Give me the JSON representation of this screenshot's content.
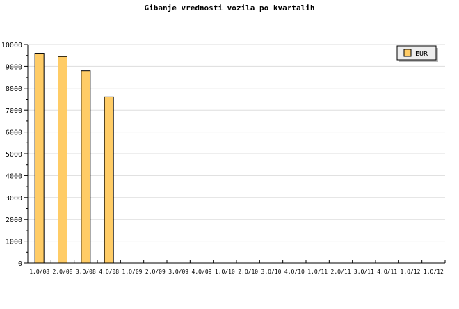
{
  "chart_data": {
    "type": "bar",
    "title": "Gibanje vrednosti vozila po kvartalih",
    "categories": [
      "1.Q/08",
      "2.Q/08",
      "3.Q/08",
      "4.Q/08",
      "1.Q/09",
      "2.Q/09",
      "3.Q/09",
      "4.Q/09",
      "1.Q/10",
      "2.Q/10",
      "3.Q/10",
      "4.Q/10",
      "1.Q/11",
      "2.Q/11",
      "3.Q/11",
      "4.Q/11",
      "1.Q/12",
      "1.Q/12"
    ],
    "series": [
      {
        "name": "EUR",
        "values": [
          9600,
          9450,
          8800,
          7600,
          null,
          null,
          null,
          null,
          null,
          null,
          null,
          null,
          null,
          null,
          null,
          null,
          null,
          null
        ],
        "color": "#ffcc66"
      }
    ],
    "ylim": [
      0,
      10000
    ],
    "yticks": [
      0,
      1000,
      2000,
      3000,
      4000,
      5000,
      6000,
      7000,
      8000,
      9000,
      10000
    ],
    "grid": true,
    "legend": "top-right",
    "xlabel": "",
    "ylabel": ""
  }
}
